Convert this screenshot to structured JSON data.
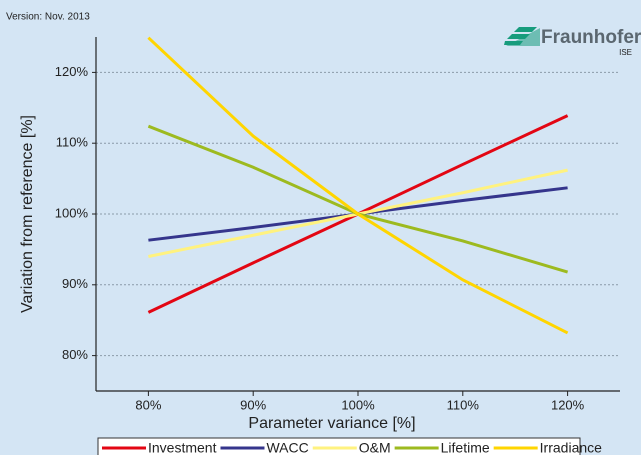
{
  "version_note": "Version: Nov. 2013",
  "logo": {
    "name": "Fraunhofer",
    "unit": "ISE"
  },
  "chart_data": {
    "type": "line",
    "x_label": "Parameter variance [%]",
    "y_label": "Variation from reference [%]",
    "x": [
      80,
      90,
      100,
      110,
      120
    ],
    "xlim": [
      75,
      125
    ],
    "xticks": [
      {
        "value": 80,
        "label": "80%"
      },
      {
        "value": 90,
        "label": "90%"
      },
      {
        "value": 100,
        "label": "100%"
      },
      {
        "value": 110,
        "label": "110%"
      },
      {
        "value": 120,
        "label": "120%"
      }
    ],
    "ylim": [
      75,
      125
    ],
    "yticks": [
      {
        "value": 80,
        "label": "80%"
      },
      {
        "value": 90,
        "label": "90%"
      },
      {
        "value": 100,
        "label": "100%"
      },
      {
        "value": 110,
        "label": "110%"
      },
      {
        "value": 120,
        "label": "120%"
      }
    ],
    "grid": true,
    "legend": "bottom",
    "series": [
      {
        "name": "Investment",
        "color": "#e30613",
        "values": [
          86.1,
          93.1,
          100,
          107,
          113.9
        ]
      },
      {
        "name": "WACC",
        "color": "#35358c",
        "values": [
          96.3,
          98.1,
          100,
          101.9,
          103.7
        ]
      },
      {
        "name": "O&M",
        "color": "#fff27f",
        "values": [
          94,
          97,
          100,
          103,
          106.2
        ]
      },
      {
        "name": "Lifetime",
        "color": "#9dba1f",
        "values": [
          112.4,
          106.6,
          100,
          96.2,
          91.8
        ]
      },
      {
        "name": "Irradiance",
        "color": "#ffd500",
        "values": [
          124.9,
          111,
          100,
          90.7,
          83.2
        ]
      }
    ]
  }
}
